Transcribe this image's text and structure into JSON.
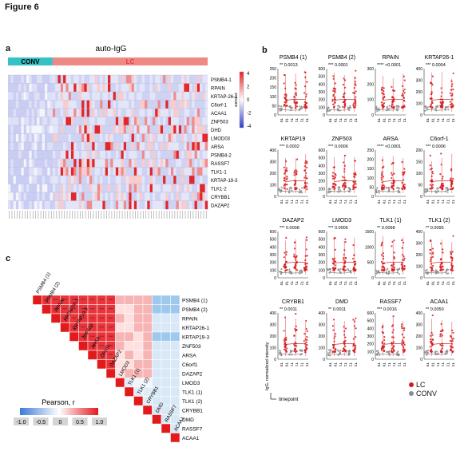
{
  "figure_title": "Figure 6",
  "panels": {
    "a": {
      "letter": "a",
      "title": "auto-IgG",
      "group_conv": "CONV",
      "group_lc": "LC",
      "colors": {
        "conv": "#35c1c6",
        "lc": "#ee8a86",
        "high": "#ea1f22",
        "low": "#2d3ccb",
        "mid": "#ffffff"
      },
      "row_labels": [
        "PSMB4-1",
        "RPAIN",
        "KRTAP-26-1",
        "C6orf-1",
        "ACAA1",
        "ZNF503",
        "DHD",
        "LMOD03",
        "ARSA",
        "PSMB4-2",
        "RASSF7",
        "TLK1-1",
        "KRTAP-19-3",
        "TLK1-2",
        "CRYBB1",
        "DAZAP2"
      ],
      "colorbar_title": "z-score",
      "colorbar_ticks": [
        "4",
        "2",
        "0",
        "-2",
        "-4"
      ]
    },
    "b": {
      "letter": "b",
      "xticks": [
        "T0",
        "T1",
        "T2"
      ],
      "y_axis_label": "IgG, normalized intensity",
      "x_axis_label": "timepoint",
      "legend": [
        {
          "label": "LC",
          "color": "#d7191c"
        },
        {
          "label": "CONV",
          "color": "#8c8c8c"
        }
      ],
      "plots": [
        {
          "title": "PSMB4 (1)",
          "stars": "**",
          "p": "0.0013",
          "ymax": "250",
          "yticks": [
            "250",
            "200",
            "150",
            "100",
            "50",
            "0"
          ]
        },
        {
          "title": "PSMB4 (2)",
          "stars": "***",
          "p": "0.0001",
          "ymax": "600",
          "yticks": [
            "600",
            "500",
            "400",
            "300",
            "200",
            "100",
            "0"
          ]
        },
        {
          "title": "RPAIN",
          "stars": "****",
          "p": "<0.0001",
          "ymax": "300",
          "yticks": [
            "300",
            "200",
            "100",
            "0"
          ]
        },
        {
          "title": "KRTAP26-1",
          "stars": "***",
          "p": "0.0004",
          "ymax": "400",
          "yticks": [
            "400",
            "300",
            "200",
            "100",
            "0"
          ]
        },
        {
          "title": "KRTAP19",
          "stars": "***",
          "p": "0.0002",
          "ymax": "400",
          "yticks": [
            "400",
            "300",
            "200",
            "100",
            "0"
          ]
        },
        {
          "title": "ZNF503",
          "stars": "***",
          "p": "0.0006",
          "ymax": "600",
          "yticks": [
            "600",
            "500",
            "400",
            "300",
            "200",
            "100",
            "0"
          ]
        },
        {
          "title": "ARSA",
          "stars": "****",
          "p": "<0.0001",
          "ymax": "250",
          "yticks": [
            "250",
            "200",
            "150",
            "100",
            "50",
            "0"
          ]
        },
        {
          "title": "C6orf-1",
          "stars": "***",
          "p": "0.0006",
          "ymax": "200",
          "yticks": [
            "200",
            "150",
            "100",
            "50",
            "0"
          ]
        },
        {
          "title": "DAZAP2",
          "stars": "***",
          "p": "0.0008",
          "ymax": "600",
          "yticks": [
            "600",
            "500",
            "400",
            "300",
            "200",
            "100",
            "0"
          ]
        },
        {
          "title": "LMOD3",
          "stars": "***",
          "p": "0.0006",
          "ymax": "600",
          "yticks": [
            "600",
            "500",
            "400",
            "300",
            "200",
            "100",
            "0"
          ]
        },
        {
          "title": "TLK1 (1)",
          "stars": "**",
          "p": "0.0098",
          "ymax": "1500",
          "yticks": [
            "1500",
            "1000",
            "500",
            "0"
          ]
        },
        {
          "title": "TLK1 (2)",
          "stars": "**",
          "p": "0.0095",
          "ymax": "400",
          "yticks": [
            "400",
            "300",
            "200",
            "100",
            "0"
          ]
        },
        {
          "title": "CRYBB1",
          "stars": "**",
          "p": "0.0011",
          "ymax": "400",
          "yticks": [
            "400",
            "300",
            "200",
            "100",
            "0"
          ]
        },
        {
          "title": "DMD",
          "stars": "**",
          "p": "0.0011",
          "ymax": "400",
          "yticks": [
            "400",
            "300",
            "200",
            "100",
            "0"
          ]
        },
        {
          "title": "RASSF7",
          "stars": "***",
          "p": "0.0016",
          "ymax": "600",
          "yticks": [
            "600",
            "500",
            "400",
            "300",
            "200",
            "100",
            "0"
          ]
        },
        {
          "title": "ACAA1",
          "stars": "**",
          "p": "0.0050",
          "ymax": "400",
          "yticks": [
            "400",
            "300",
            "200",
            "100",
            "0"
          ]
        }
      ]
    },
    "c": {
      "letter": "c",
      "labels": [
        "PSMB4 (1)",
        "PSMB4 (2)",
        "RPAIN",
        "KRTAP26-1",
        "KRTAP19-3",
        "ZNF503",
        "ARSA",
        "C6orf1",
        "DAZAP2",
        "LMOD3",
        "TLK1 (1)",
        "TLK1 (2)",
        "CRYBB1",
        "DMD",
        "RASSF7",
        "ACAA1"
      ],
      "legend_title": "Pearson, r",
      "legend_ticks": [
        "-1.0",
        "-0.5",
        "0",
        "0.5",
        "1.0"
      ]
    }
  }
}
